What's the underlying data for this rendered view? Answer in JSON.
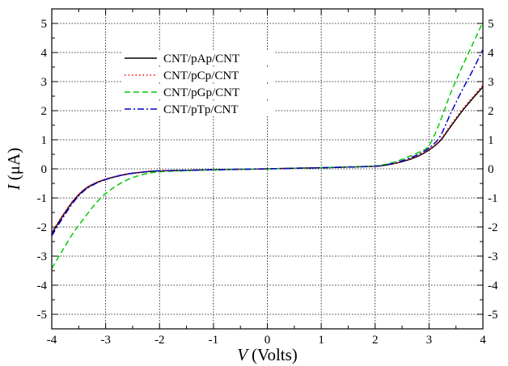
{
  "chart_data": {
    "type": "line",
    "xlabel_symbol": "V",
    "xlabel_unit": "(Volts)",
    "ylabel_symbol": "I",
    "ylabel_unit": "(μA)",
    "xlim": [
      -4,
      4
    ],
    "ylim": [
      -5.5,
      5.5
    ],
    "grid": true,
    "legend_position": "top-left",
    "x_ticks": [
      -4,
      -3,
      -2,
      -1,
      0,
      1,
      2,
      3,
      4
    ],
    "x_tick_labels": [
      "-4",
      "-3",
      "-2",
      "-1",
      "0",
      "1",
      "2",
      "3",
      "4"
    ],
    "y_ticks": [
      -5,
      -4,
      -3,
      -2,
      -1,
      0,
      1,
      2,
      3,
      4,
      5
    ],
    "y_tick_labels": [
      "-5",
      "-4",
      "-3",
      "-2",
      "-1",
      "0",
      "1",
      "2",
      "3",
      "4",
      "5"
    ],
    "x": [
      -4,
      -3.8,
      -3.6,
      -3.4,
      -3.2,
      -3.0,
      -2.8,
      -2.6,
      -2.4,
      -2.2,
      -2.0,
      -1.5,
      -1.0,
      -0.5,
      0,
      0.5,
      1.0,
      1.5,
      2.0,
      2.2,
      2.4,
      2.6,
      2.8,
      3.0,
      3.2,
      3.4,
      3.6,
      3.8,
      4.0
    ],
    "series": [
      {
        "name": "CNT/pAp/CNT",
        "color": "#000000",
        "dash": "solid",
        "values": [
          -2.22,
          -1.63,
          -1.1,
          -0.72,
          -0.5,
          -0.36,
          -0.26,
          -0.18,
          -0.13,
          -0.09,
          -0.07,
          -0.05,
          -0.03,
          -0.015,
          0,
          0.02,
          0.04,
          0.06,
          0.09,
          0.13,
          0.2,
          0.3,
          0.44,
          0.65,
          0.95,
          1.45,
          1.95,
          2.4,
          2.82
        ]
      },
      {
        "name": "CNT/pCp/CNT",
        "color": "#ff0000",
        "dash": "dotted",
        "values": [
          -2.18,
          -1.6,
          -1.08,
          -0.7,
          -0.49,
          -0.35,
          -0.25,
          -0.17,
          -0.12,
          -0.09,
          -0.07,
          -0.05,
          -0.03,
          -0.015,
          0,
          0.02,
          0.04,
          0.06,
          0.09,
          0.13,
          0.2,
          0.31,
          0.45,
          0.67,
          0.98,
          1.5,
          2.0,
          2.45,
          2.88
        ]
      },
      {
        "name": "CNT/pGp/CNT",
        "color": "#00cc00",
        "dash": "dashed",
        "values": [
          -3.42,
          -2.8,
          -2.2,
          -1.7,
          -1.22,
          -0.85,
          -0.58,
          -0.38,
          -0.24,
          -0.15,
          -0.1,
          -0.06,
          -0.035,
          -0.015,
          0,
          0.02,
          0.04,
          0.07,
          0.1,
          0.16,
          0.26,
          0.4,
          0.56,
          0.8,
          1.6,
          2.6,
          3.45,
          4.25,
          5.05
        ]
      },
      {
        "name": "CNT/pTp/CNT",
        "color": "#0000cc",
        "dash": "dashdot",
        "values": [
          -2.3,
          -1.7,
          -1.15,
          -0.75,
          -0.52,
          -0.37,
          -0.26,
          -0.18,
          -0.13,
          -0.09,
          -0.07,
          -0.05,
          -0.03,
          -0.015,
          0,
          0.02,
          0.04,
          0.06,
          0.09,
          0.14,
          0.22,
          0.34,
          0.5,
          0.72,
          1.1,
          1.9,
          2.65,
          3.35,
          4.1
        ]
      }
    ]
  }
}
